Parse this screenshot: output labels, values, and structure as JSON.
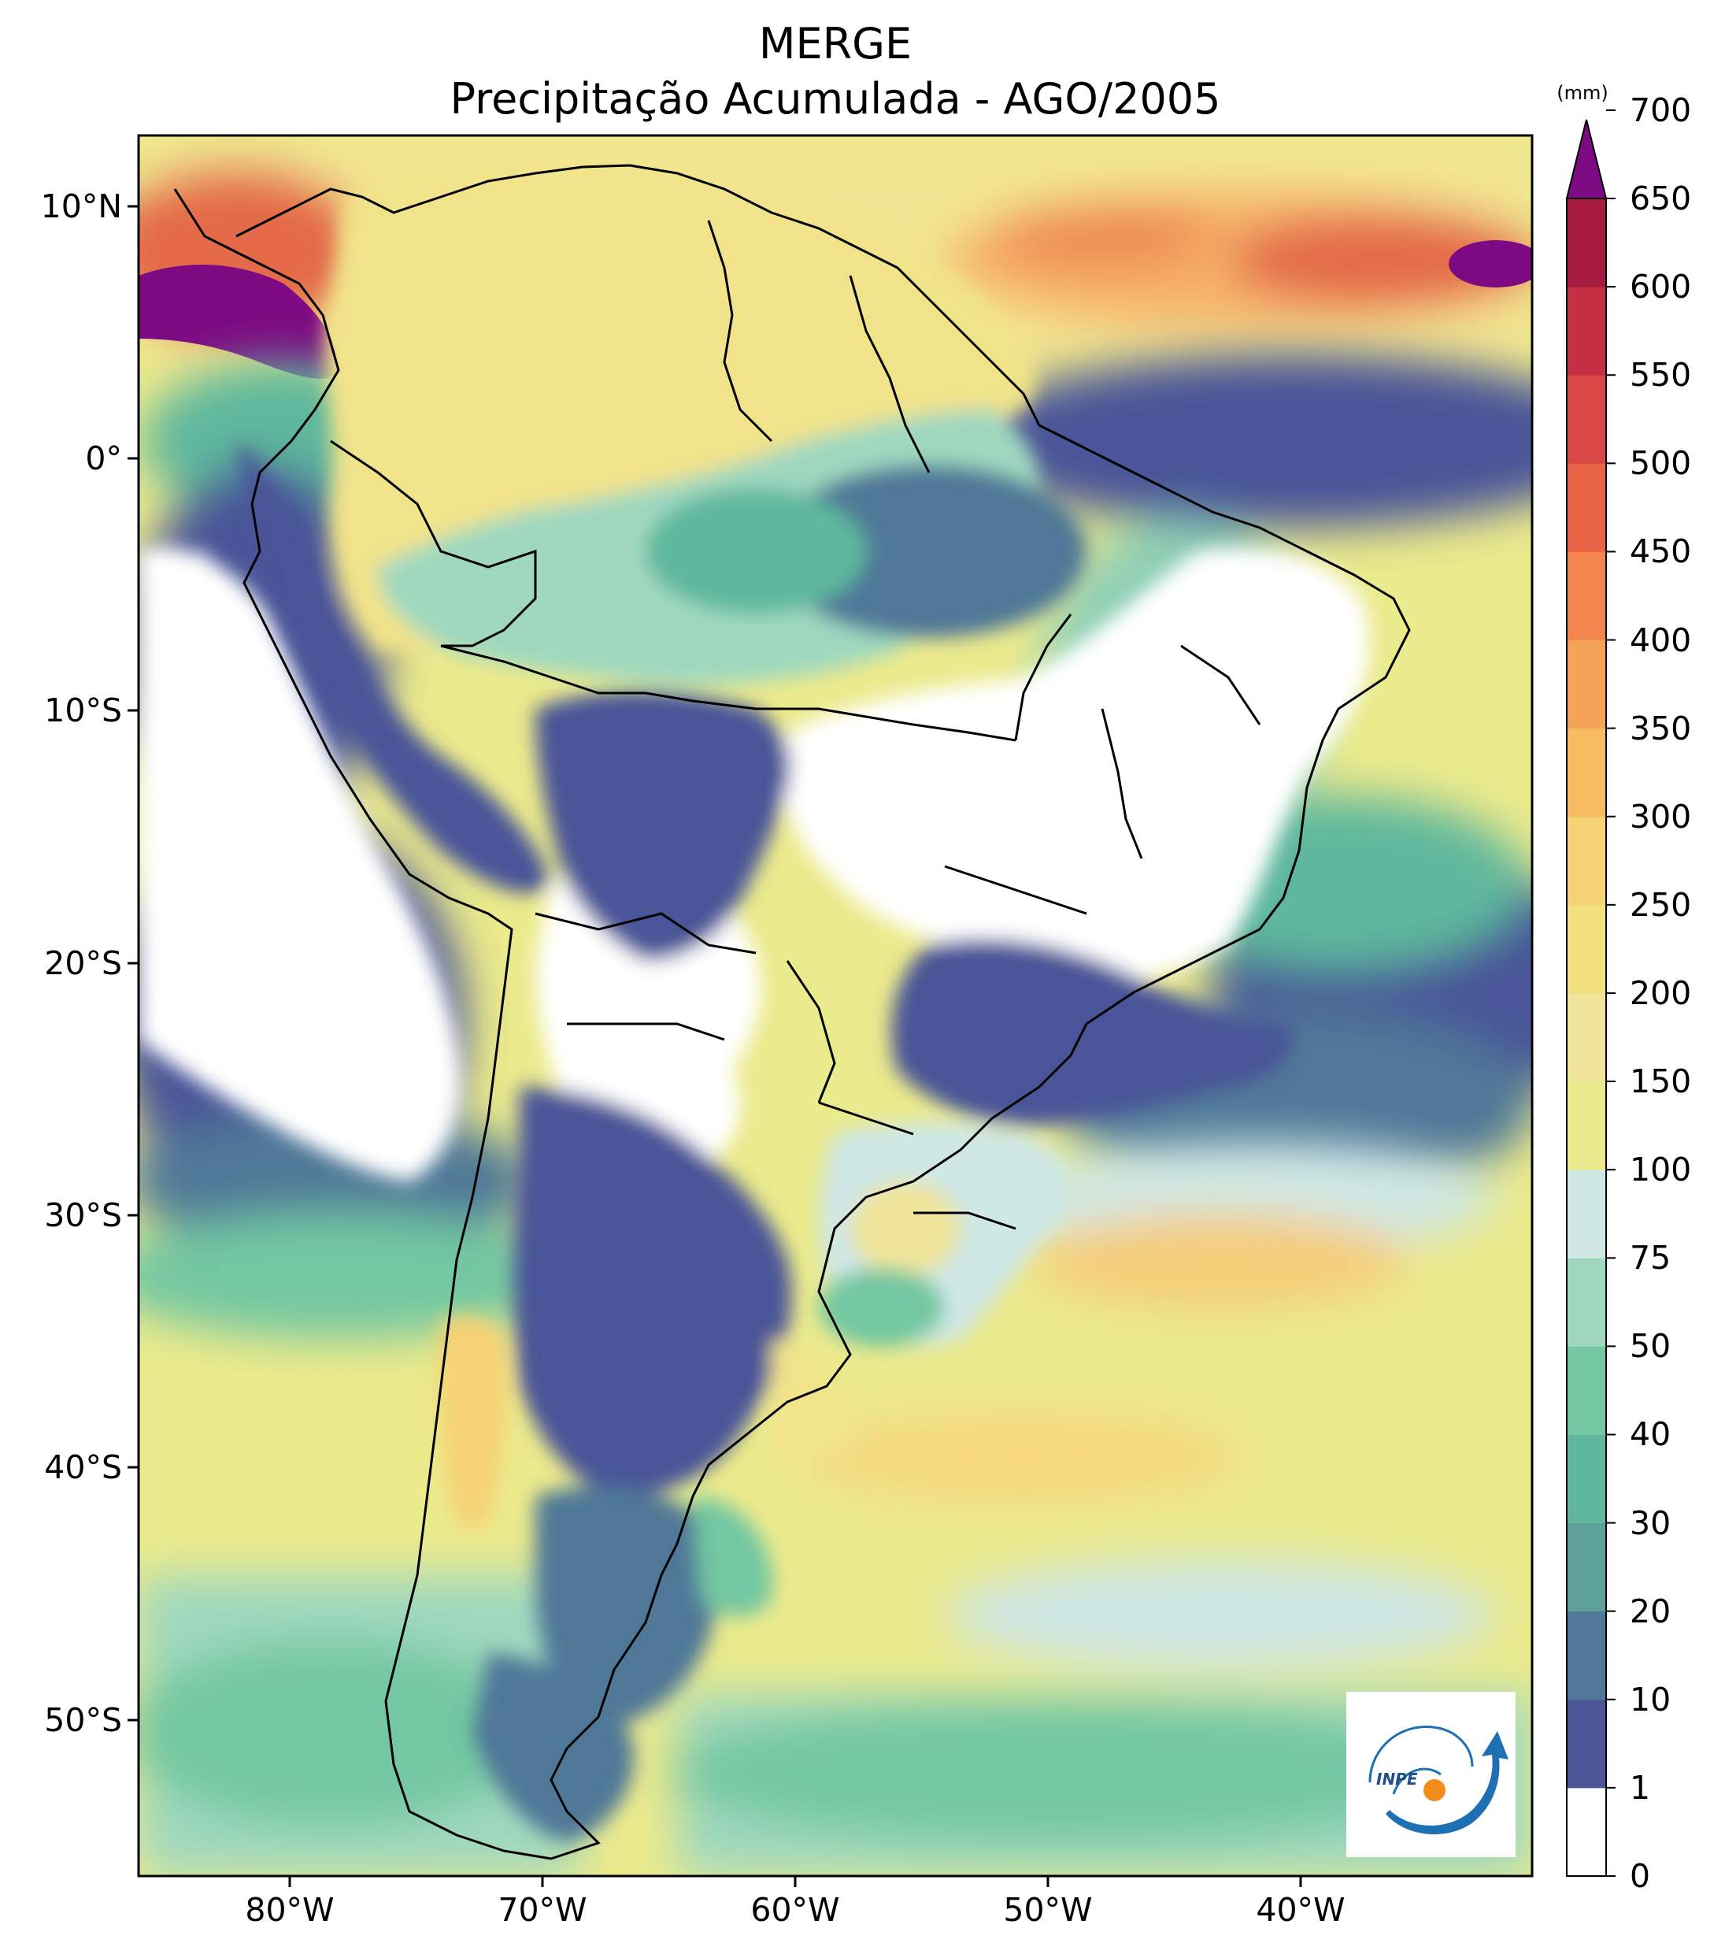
{
  "title": "MERGE",
  "subtitle": "Precipitação Acumulada - AGO/2005",
  "axes": {
    "lat_ticks": [
      "10°N",
      "0°",
      "10°S",
      "20°S",
      "30°S",
      "40°S",
      "50°S"
    ],
    "lon_ticks": [
      "80°W",
      "70°W",
      "60°W",
      "50°W",
      "40°W"
    ]
  },
  "map_extent": {
    "lon_min": -85,
    "lon_max": -30,
    "lat_min": -56,
    "lat_max": 13
  },
  "colorbar": {
    "unit": "(mm)",
    "levels": [
      "0",
      "1",
      "10",
      "20",
      "30",
      "40",
      "50",
      "75",
      "100",
      "150",
      "200",
      "250",
      "300",
      "350",
      "400",
      "450",
      "500",
      "550",
      "600",
      "650",
      "700"
    ],
    "colors": [
      "#ffffff",
      "#4a5598",
      "#4f7898",
      "#5ea19a",
      "#5fb89d",
      "#73c7a2",
      "#9fd8bf",
      "#cfe8e6",
      "#ebea8c",
      "#f0e59a",
      "#f5e080",
      "#f6d275",
      "#f7bb62",
      "#f6a35a",
      "#f3844d",
      "#e96446",
      "#d94746",
      "#c42f44",
      "#a71b41"
    ],
    "extend_color": "#7d0a82"
  },
  "logo": {
    "text": "INPE",
    "colors": {
      "arrow": "#1f6fb5",
      "sun": "#f28c1b"
    }
  }
}
